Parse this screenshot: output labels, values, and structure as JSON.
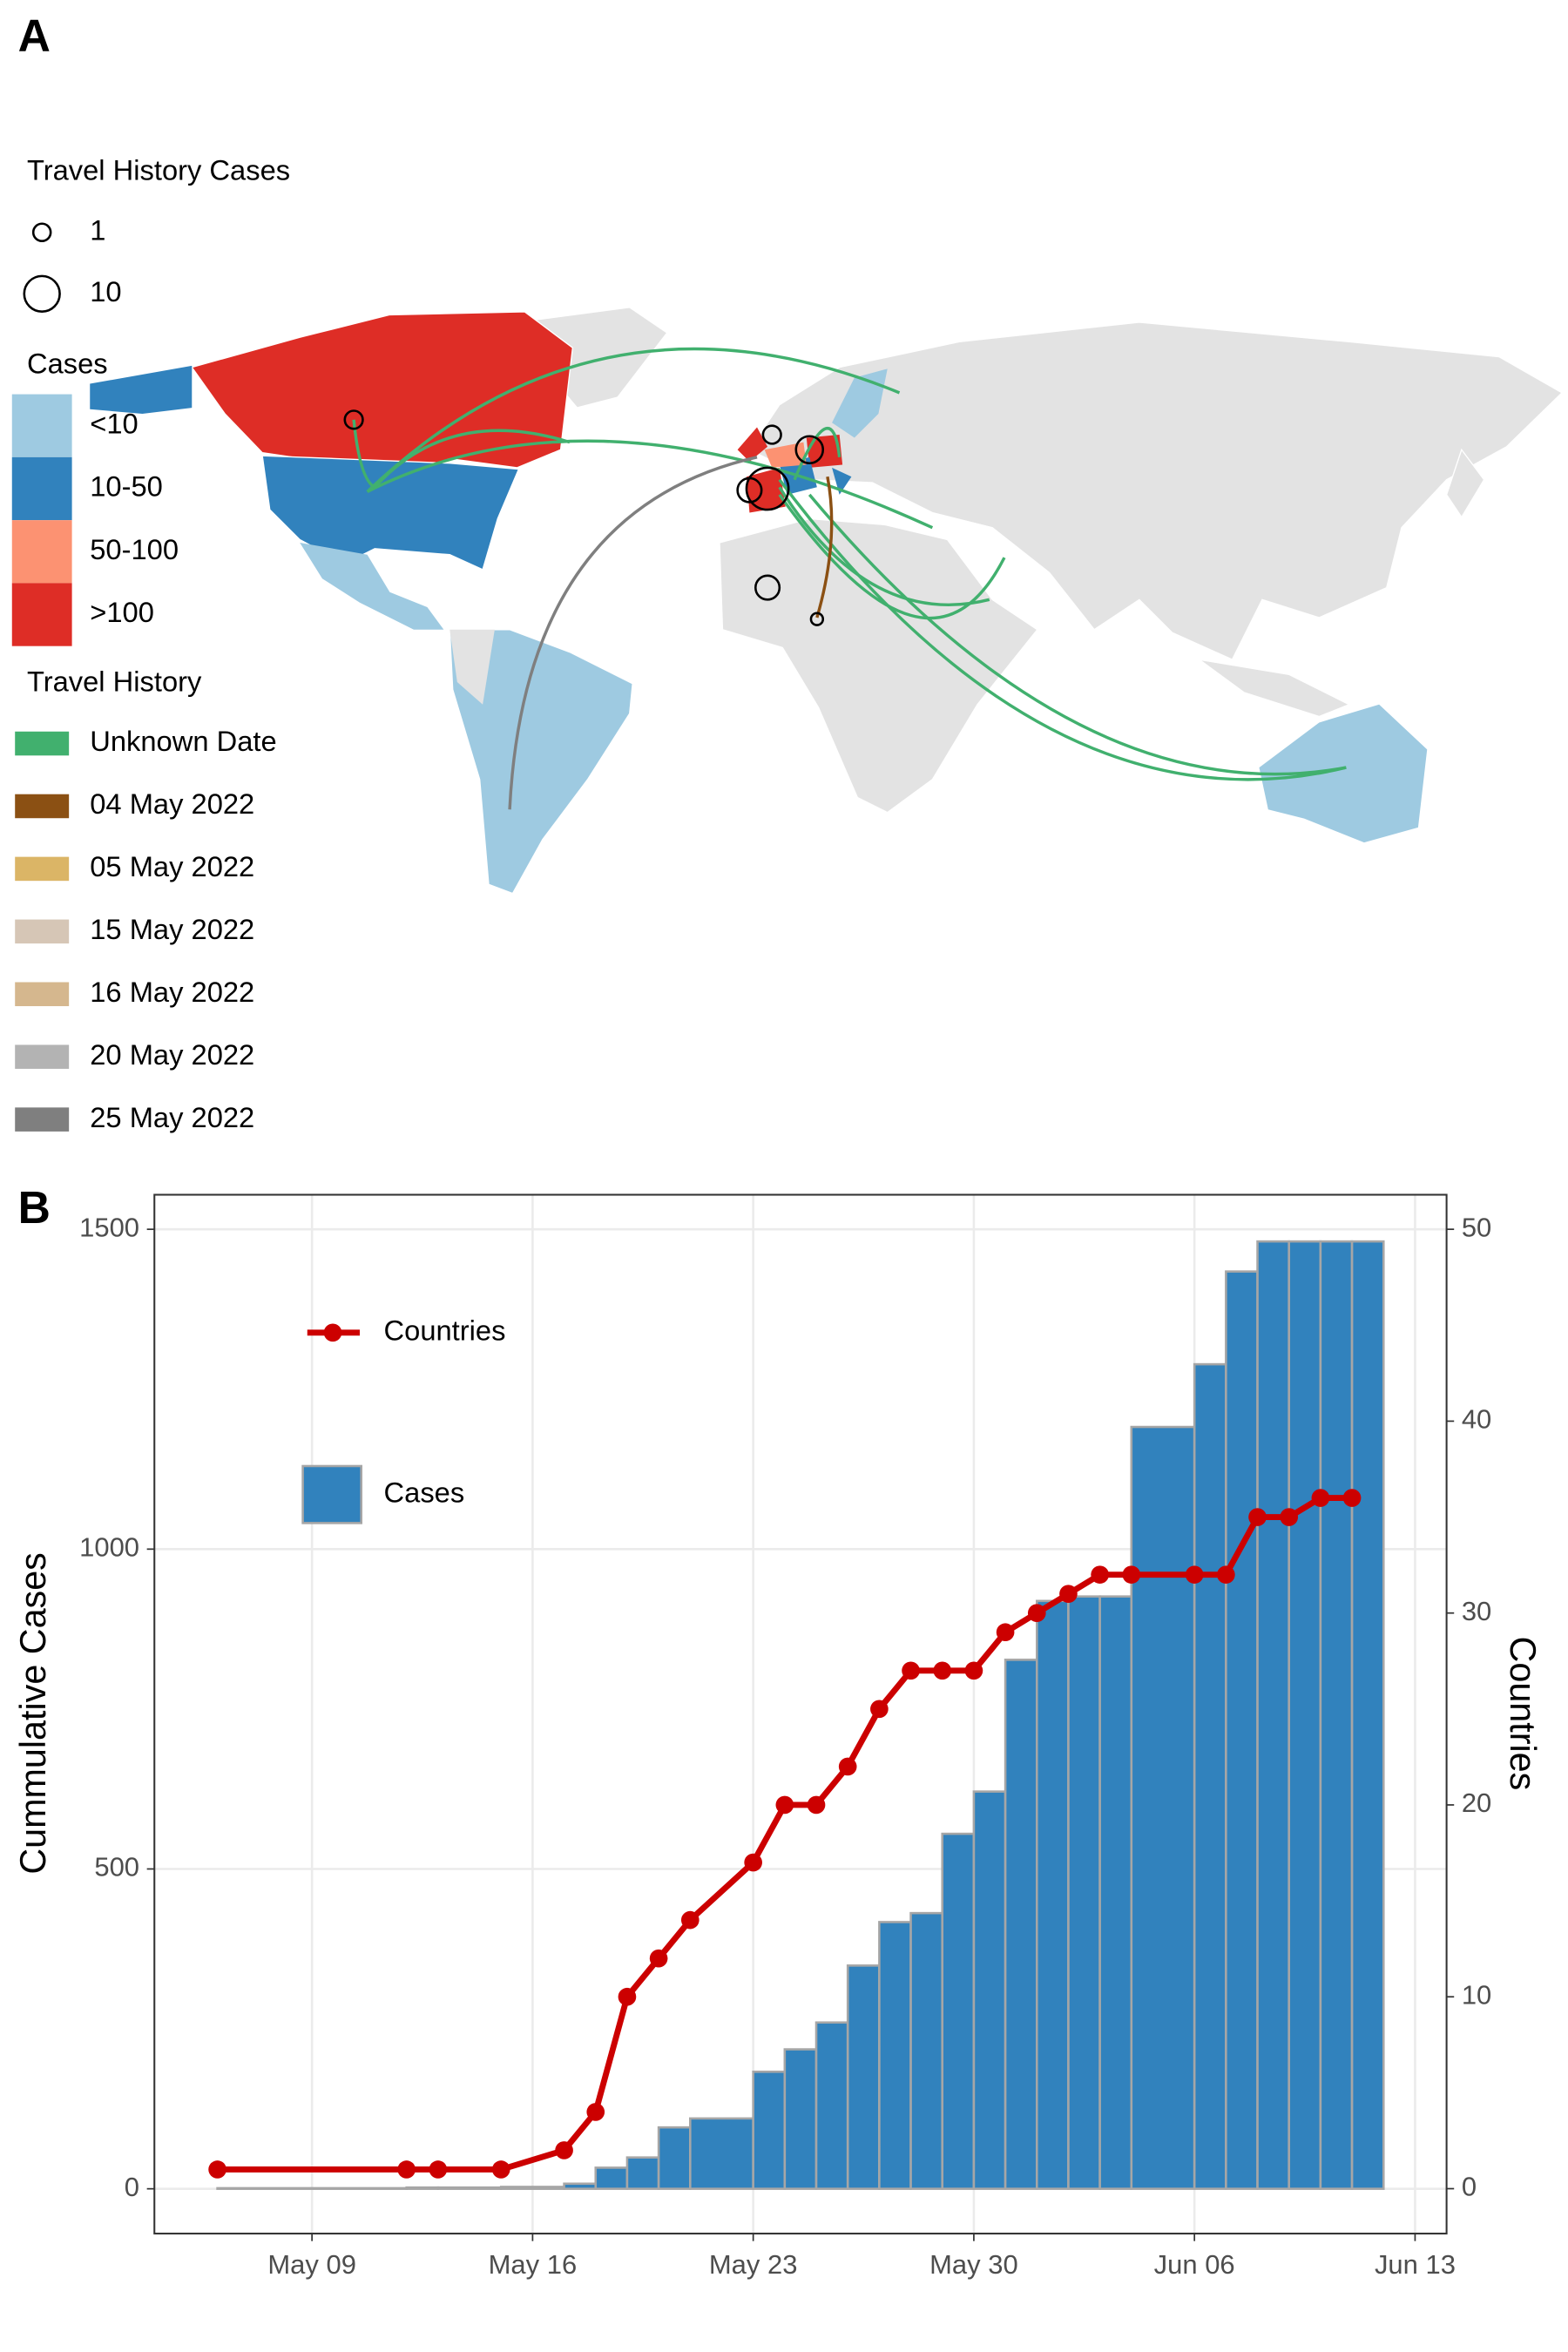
{
  "map": {
    "panel": "A",
    "size_legend": {
      "title": "Travel History Cases",
      "values": [
        1,
        10
      ]
    },
    "cases_legend": {
      "title": "Cases",
      "labels": [
        "<10",
        "10-50",
        "50-100",
        ">100"
      ],
      "colors": [
        "#9ecae1",
        "#3182bd",
        "#fc9272",
        "#de2d26"
      ]
    },
    "travel_legend": {
      "title": "Travel History",
      "labels": [
        "Unknown Date",
        "04 May 2022",
        "05 May 2022",
        "15 May 2022",
        "16 May 2022",
        "20 May 2022",
        "25 May 2022"
      ],
      "colors": [
        "#41b06e",
        "#8b5013",
        "#dbb566",
        "#d6c6b6",
        "#d5b78e",
        "#b3b3b3",
        "#7f7f7f"
      ]
    }
  },
  "chart_data": {
    "type": "bar",
    "panel": "B",
    "ylabel": "Cummulative Cases",
    "y2label": "Countries",
    "x": [
      "May 06",
      "May 12",
      "May 13",
      "May 15",
      "May 17",
      "May 18",
      "May 19",
      "May 20",
      "May 21",
      "May 23",
      "May 24",
      "May 25",
      "May 26",
      "May 27",
      "May 28",
      "May 29",
      "May 30",
      "May 31",
      "Jun 01",
      "Jun 02",
      "Jun 03",
      "Jun 04",
      "Jun 06",
      "Jun 07",
      "Jun 08",
      "Jun 09",
      "Jun 10",
      "Jun 11"
    ],
    "series": [
      {
        "name": "Cases",
        "type": "bar",
        "color": "#3182bd",
        "values": [
          1,
          2,
          2,
          3,
          8,
          33,
          49,
          96,
          110,
          183,
          218,
          260,
          349,
          417,
          431,
          555,
          621,
          827,
          919,
          926,
          926,
          1191,
          1289,
          1434,
          1481,
          1481,
          1481,
          1481
        ]
      },
      {
        "name": "Countries",
        "type": "line",
        "color": "#cc0000",
        "axis": "y2",
        "values": [
          1,
          1,
          1,
          1,
          2,
          4,
          10,
          12,
          14,
          17,
          20,
          20,
          22,
          25,
          27,
          27,
          27,
          29,
          30,
          31,
          32,
          32,
          32,
          32,
          35,
          35,
          36,
          36
        ]
      }
    ],
    "xlim": [
      "May 04",
      "Jun 14"
    ],
    "xticks": [
      "May 09",
      "May 16",
      "May 23",
      "May 30",
      "Jun 06",
      "Jun 13"
    ],
    "ylim": [
      -70,
      1554
    ],
    "yticks": [
      0,
      500,
      1000,
      1500
    ],
    "y2lim": [
      -2.34,
      51.8
    ],
    "y2ticks": [
      0,
      10,
      20,
      30,
      40,
      50
    ],
    "grid": true
  }
}
